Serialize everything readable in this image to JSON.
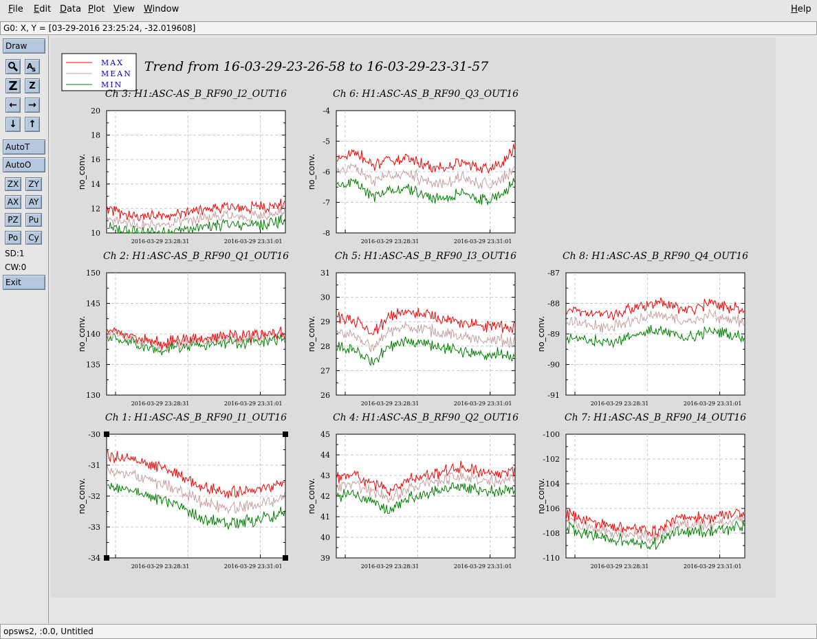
{
  "menu": {
    "file": "File",
    "edit": "Edit",
    "data": "Data",
    "plot": "Plot",
    "view": "View",
    "window": "Window",
    "help": "Help"
  },
  "coord_readout": "G0: X, Y = [03-29-2016 23:25:24, -32.019608]",
  "toolbar": {
    "draw": "Draw",
    "autot": "AutoT",
    "autoo": "AutoO",
    "zx": "ZX",
    "zy": "ZY",
    "ax": "AX",
    "ay": "AY",
    "pz": "PZ",
    "pu": "Pu",
    "po": "Po",
    "cy": "Cy",
    "sd": "SD:1",
    "cw": "CW:0",
    "exit": "Exit",
    "icons": [
      "magnify-icon",
      "text-tool-icon",
      "zoom-large-icon",
      "zoom-small-icon",
      "arrow-left-icon",
      "arrow-right-icon",
      "arrow-down-icon",
      "arrow-up-icon"
    ]
  },
  "status": "opsws2, :0.0, Untitled",
  "colors": {
    "max": "#ff0000",
    "mean": "#c8a0a0",
    "min": "#008000",
    "legend_text": "#0000cc",
    "button": "#b5c8de"
  },
  "chart_data": {
    "type": "line",
    "title": "Trend from 16-03-29-23-26-58 to 16-03-29-23-31-57",
    "legend": [
      "MAX",
      "MEAN",
      "MIN"
    ],
    "legend_position": "top-left",
    "x_tick_labels": [
      "2016-03-29 23:28:31",
      "2016-03-29 23:31:01"
    ],
    "grid": true,
    "panels": [
      {
        "title": "Ch 3: H1:ASC-AS_B_RF90_I2_OUT16",
        "ylabel": "no_conv.",
        "ylim": [
          10,
          20
        ],
        "yticks": [
          "10",
          "12",
          "14",
          "16",
          "18",
          "20"
        ],
        "series": [
          {
            "name": "MAX",
            "profile": [
              11.9,
              11.5,
              11.3,
              11.4,
              11.5,
              11.8,
              12.0,
              12.1,
              12.0,
              12.2,
              12.4
            ]
          },
          {
            "name": "MEAN",
            "profile": [
              11.1,
              10.9,
              10.6,
              10.7,
              10.9,
              11.1,
              11.3,
              11.4,
              11.3,
              11.5,
              11.7
            ]
          },
          {
            "name": "MIN",
            "profile": [
              10.4,
              10.2,
              9.9,
              10.0,
              10.2,
              10.4,
              10.6,
              10.7,
              10.6,
              10.8,
              11.0
            ]
          }
        ]
      },
      {
        "title": "Ch 6: H1:ASC-AS_B_RF90_Q3_OUT16",
        "ylabel": "no_conv.",
        "ylim": [
          -8,
          -4
        ],
        "yticks": [
          "-8",
          "-7",
          "-6",
          "-5",
          "-4"
        ],
        "series": [
          {
            "name": "MAX",
            "profile": [
              -5.6,
              -5.3,
              -5.8,
              -5.6,
              -5.5,
              -5.8,
              -5.9,
              -5.7,
              -5.9,
              -5.8,
              -5.3
            ]
          },
          {
            "name": "MEAN",
            "profile": [
              -6.0,
              -5.8,
              -6.3,
              -6.1,
              -6.0,
              -6.3,
              -6.4,
              -6.2,
              -6.4,
              -6.3,
              -5.9
            ]
          },
          {
            "name": "MIN",
            "profile": [
              -6.5,
              -6.3,
              -6.8,
              -6.6,
              -6.5,
              -6.8,
              -6.9,
              -6.7,
              -6.9,
              -6.8,
              -6.4
            ]
          }
        ]
      },
      {
        "title": "Ch 2: H1:ASC-AS_B_RF90_Q1_OUT16",
        "ylabel": "no_conv.",
        "ylim": [
          130,
          150
        ],
        "yticks": [
          "130",
          "135",
          "140",
          "145",
          "150"
        ],
        "series": [
          {
            "name": "MAX",
            "profile": [
              140.5,
              140.0,
              139.4,
              138.3,
              139.0,
              139.3,
              139.6,
              139.8,
              139.7,
              140.0,
              140.1
            ]
          },
          {
            "name": "MEAN",
            "profile": [
              139.8,
              139.4,
              138.8,
              137.8,
              138.5,
              138.8,
              139.1,
              139.3,
              139.2,
              139.5,
              139.6
            ]
          },
          {
            "name": "MIN",
            "profile": [
              139.2,
              138.8,
              138.2,
              137.2,
              137.9,
              138.2,
              138.5,
              138.7,
              138.6,
              138.9,
              139.0
            ]
          }
        ]
      },
      {
        "title": "Ch 5: H1:ASC-AS_B_RF90_I3_OUT16",
        "ylabel": "no_conv.",
        "ylim": [
          26,
          31
        ],
        "yticks": [
          "26",
          "27",
          "28",
          "29",
          "30",
          "31"
        ],
        "series": [
          {
            "name": "MAX",
            "profile": [
              29.2,
              29.0,
              28.5,
              29.2,
              29.4,
              29.3,
              29.1,
              29.0,
              28.8,
              28.9,
              28.7
            ]
          },
          {
            "name": "MEAN",
            "profile": [
              28.6,
              28.4,
              27.9,
              28.6,
              28.8,
              28.7,
              28.5,
              28.4,
              28.2,
              28.3,
              28.1
            ]
          },
          {
            "name": "MIN",
            "profile": [
              28.0,
              27.8,
              27.3,
              28.0,
              28.2,
              28.1,
              27.9,
              27.8,
              27.6,
              27.7,
              27.5
            ]
          }
        ]
      },
      {
        "title": "Ch 8: H1:ASC-AS_B_RF90_Q4_OUT16",
        "ylabel": "no_conv.",
        "ylim": [
          -91,
          -87
        ],
        "yticks": [
          "-91",
          "-90",
          "-89",
          "-88",
          "-87"
        ],
        "series": [
          {
            "name": "MAX",
            "profile": [
              -88.2,
              -88.3,
              -88.4,
              -88.3,
              -88.1,
              -88.0,
              -88.1,
              -88.2,
              -88.0,
              -88.1,
              -88.2
            ]
          },
          {
            "name": "MEAN",
            "profile": [
              -88.6,
              -88.7,
              -88.8,
              -88.7,
              -88.5,
              -88.4,
              -88.5,
              -88.6,
              -88.4,
              -88.5,
              -88.6
            ]
          },
          {
            "name": "MIN",
            "profile": [
              -89.1,
              -89.2,
              -89.3,
              -89.2,
              -89.0,
              -88.9,
              -89.0,
              -89.1,
              -88.9,
              -89.0,
              -89.1
            ]
          }
        ]
      },
      {
        "title": "Ch 1: H1:ASC-AS_B_RF90_I1_OUT16",
        "ylabel": "no_conv.",
        "ylim": [
          -34,
          -30
        ],
        "yticks": [
          "-34",
          "-33",
          "-32",
          "-31",
          "-30"
        ],
        "series": [
          {
            "name": "MAX",
            "profile": [
              -30.7,
              -30.8,
              -30.9,
              -31.1,
              -31.3,
              -31.6,
              -31.8,
              -31.9,
              -31.8,
              -31.7,
              -31.5
            ]
          },
          {
            "name": "MEAN",
            "profile": [
              -31.2,
              -31.3,
              -31.4,
              -31.6,
              -31.8,
              -32.1,
              -32.3,
              -32.4,
              -32.3,
              -32.2,
              -32.0
            ]
          },
          {
            "name": "MIN",
            "profile": [
              -31.7,
              -31.8,
              -31.9,
              -32.1,
              -32.3,
              -32.6,
              -32.8,
              -32.9,
              -32.8,
              -32.7,
              -32.5
            ]
          }
        ]
      },
      {
        "title": "Ch 4: H1:ASC-AS_B_RF90_Q2_OUT16",
        "ylabel": "no_conv.",
        "ylim": [
          39,
          45
        ],
        "yticks": [
          "39",
          "40",
          "41",
          "42",
          "43",
          "44",
          "45"
        ],
        "series": [
          {
            "name": "MAX",
            "profile": [
              42.9,
              43.0,
              42.6,
              42.3,
              42.8,
              43.0,
              43.2,
              43.4,
              43.2,
              43.1,
              43.2
            ]
          },
          {
            "name": "MEAN",
            "profile": [
              42.5,
              42.6,
              42.2,
              41.9,
              42.4,
              42.6,
              42.8,
              43.0,
              42.8,
              42.7,
              42.8
            ]
          },
          {
            "name": "MIN",
            "profile": [
              42.0,
              42.1,
              41.7,
              41.3,
              41.9,
              42.1,
              42.3,
              42.5,
              42.3,
              42.2,
              42.3
            ]
          }
        ]
      },
      {
        "title": "Ch 7: H1:ASC-AS_B_RF90_I4_OUT16",
        "ylabel": "no_conv.",
        "ylim": [
          -110,
          -100
        ],
        "yticks": [
          "-110",
          "-108",
          "-106",
          "-104",
          "-102",
          "-100"
        ],
        "series": [
          {
            "name": "MAX",
            "profile": [
              -106.4,
              -106.9,
              -107.3,
              -107.5,
              -107.7,
              -107.8,
              -106.9,
              -106.7,
              -106.8,
              -106.6,
              -106.2
            ]
          },
          {
            "name": "MEAN",
            "profile": [
              -106.9,
              -107.4,
              -107.8,
              -108.0,
              -108.2,
              -108.3,
              -107.4,
              -107.2,
              -107.3,
              -107.1,
              -106.7
            ]
          },
          {
            "name": "MIN",
            "profile": [
              -107.5,
              -108.0,
              -108.4,
              -108.6,
              -108.8,
              -108.9,
              -108.0,
              -107.8,
              -107.9,
              -107.7,
              -107.3
            ]
          }
        ]
      }
    ]
  }
}
